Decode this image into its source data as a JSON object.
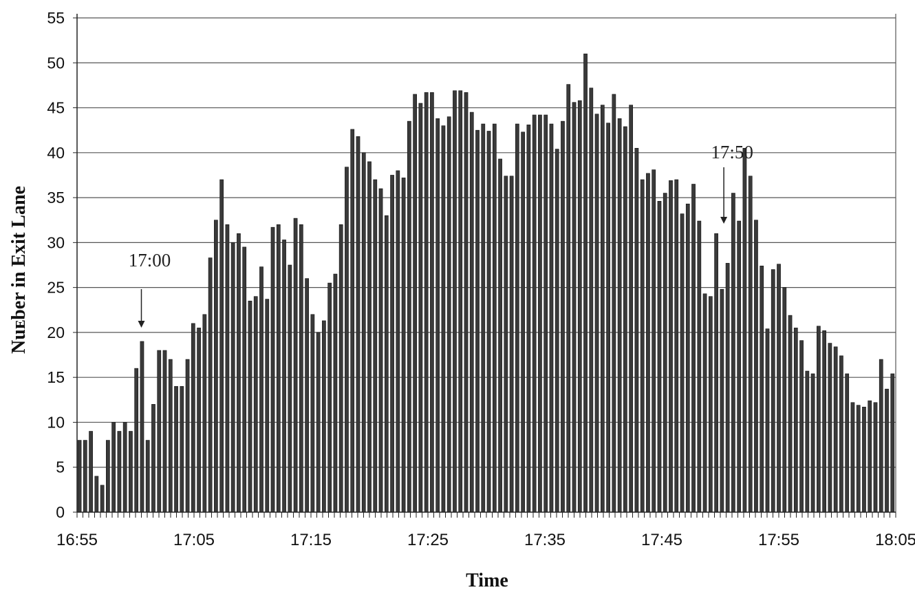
{
  "chart_data": {
    "type": "bar",
    "title": "",
    "xlabel": "Time",
    "ylabel": "Nuᴇber in Exit Lane",
    "ylim": [
      0,
      55
    ],
    "yticks": [
      "0",
      "5",
      "10",
      "15",
      "20",
      "25",
      "30",
      "35",
      "40",
      "45",
      "50",
      "55"
    ],
    "xticks": [
      "16:55",
      "17:05",
      "17:15",
      "17:25",
      "17:35",
      "17:45",
      "17:55",
      "18:05"
    ],
    "xrange_minutes": [
      0,
      70
    ],
    "grid": "horizontal",
    "legend": "none",
    "bar_color": "#3a3a3a",
    "annotations": [
      {
        "text": "17:00",
        "at_minute": 5.5
      },
      {
        "text": "17:50",
        "at_minute": 55.3
      }
    ],
    "series": [
      {
        "values": [
          8,
          8,
          9,
          4,
          3,
          8,
          10,
          9,
          10,
          9,
          16,
          19,
          8,
          12,
          18,
          18,
          17,
          14,
          14,
          17,
          21,
          20.5,
          22,
          28.3,
          32.5,
          37,
          32,
          30,
          31,
          29.5,
          23.5,
          24,
          27.3,
          23.7,
          31.7,
          32,
          30.3,
          27.5,
          32.7,
          32,
          26,
          22,
          20,
          21.3,
          25.5,
          26.5,
          32,
          38.4,
          42.6,
          41.8,
          40,
          39,
          37,
          36,
          33,
          37.5,
          38,
          37.2,
          43.5,
          46.5,
          45.5,
          46.7,
          46.7,
          43.8,
          43,
          44,
          46.9,
          46.9,
          46.7,
          44.5,
          42.5,
          43.2,
          42.4,
          43.2,
          39.3,
          37.4,
          37.4,
          43.2,
          42.3,
          43.1,
          44.2,
          44.2,
          44.2,
          43.2,
          40.4,
          43.5,
          47.6,
          45.6,
          45.8,
          51,
          47.2,
          44.3,
          45.3,
          43.3,
          46.5,
          43.8,
          42.9,
          45.3,
          40.5,
          37,
          37.7,
          38.1,
          34.6,
          35.5,
          36.9,
          37,
          33.2,
          34.3,
          36.5,
          32.4,
          24.3,
          24,
          31,
          24.8,
          27.7,
          35.5,
          32.4,
          40.5,
          37.4,
          32.5,
          27.4,
          20.4,
          27,
          27.6,
          25,
          21.9,
          20.5,
          19.1,
          15.7,
          15.4,
          20.7,
          20.2,
          18.8,
          18.4,
          17.4,
          15.4,
          12.2,
          11.9,
          11.7,
          12.4,
          12.2,
          17,
          13.7,
          15.4
        ]
      }
    ]
  }
}
